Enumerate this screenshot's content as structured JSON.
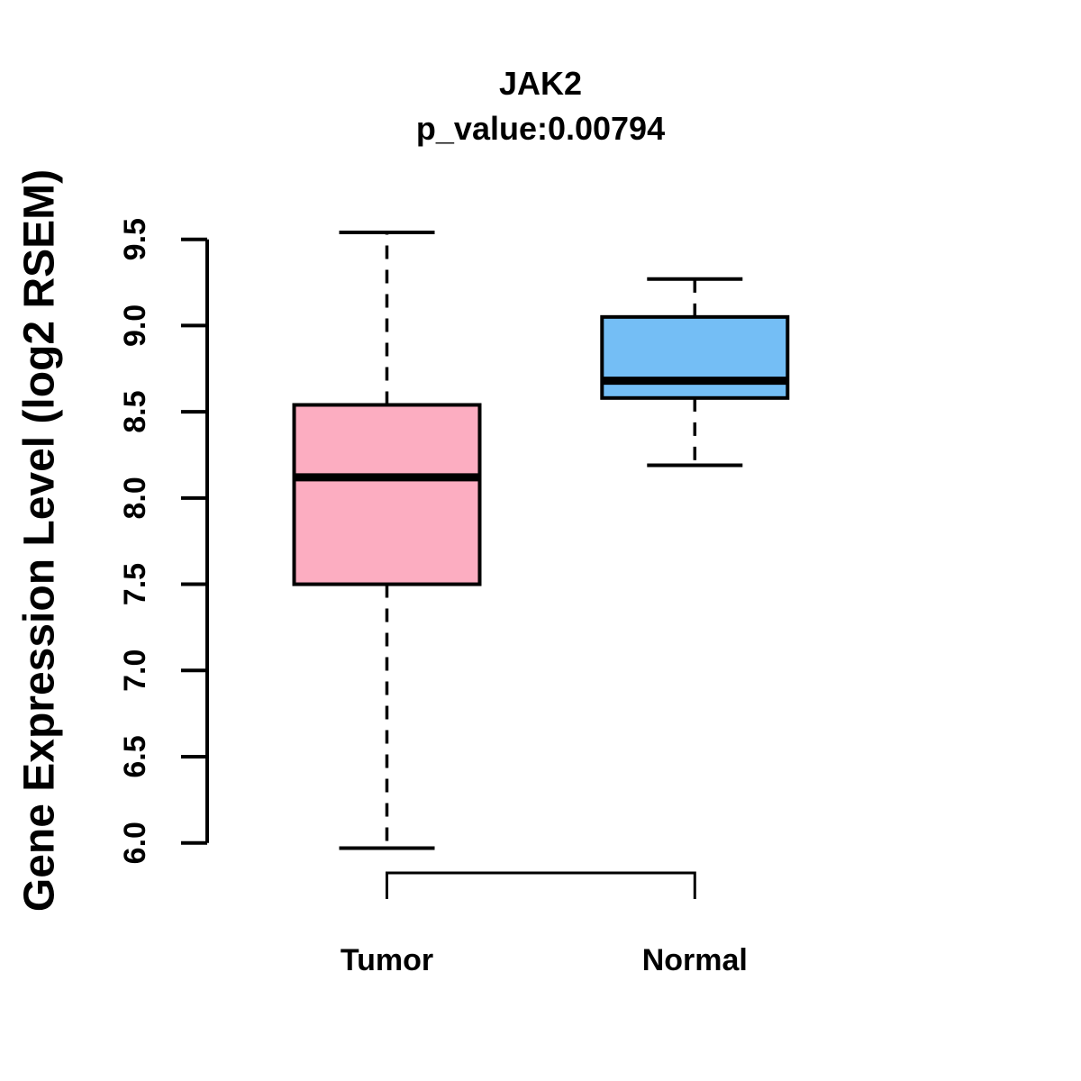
{
  "header": {
    "title": "JAK2",
    "subtitle": "p_value:0.00794"
  },
  "axes": {
    "ylabel": "Gene Expression Level (log2 RSEM)"
  },
  "colors": {
    "background": "#FFFFFF",
    "stroke": "#000000",
    "tumor_fill": "#FCADC1",
    "normal_fill": "#74BEF5"
  },
  "chart_data": {
    "type": "boxplot",
    "title": "JAK2",
    "subtitle": "p_value:0.00794",
    "ylabel": "Gene Expression Level (log2 RSEM)",
    "xlabel": "",
    "categories": [
      "Tumor",
      "Normal"
    ],
    "series": [
      {
        "name": "Tumor",
        "fill": "#FCADC1",
        "lower_whisker": 5.97,
        "q1": 7.5,
        "median": 8.12,
        "q3": 8.54,
        "upper_whisker": 9.54
      },
      {
        "name": "Normal",
        "fill": "#74BEF5",
        "lower_whisker": 8.19,
        "q1": 8.58,
        "median": 8.68,
        "q3": 9.05,
        "upper_whisker": 9.27
      }
    ],
    "ylim": [
      6.0,
      9.5
    ],
    "y_ticks": [
      "6.0",
      "6.5",
      "7.0",
      "7.5",
      "8.0",
      "8.5",
      "9.0",
      "9.5"
    ],
    "grid": false,
    "legend": "none"
  }
}
